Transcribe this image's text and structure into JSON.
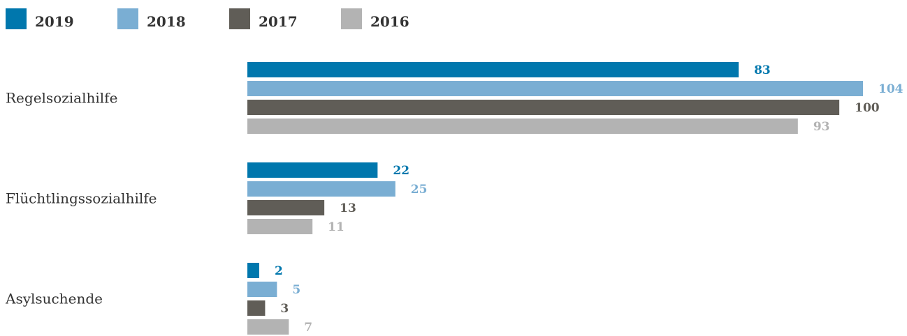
{
  "chart_data": {
    "type": "bar",
    "orientation": "horizontal",
    "categories": [
      "Regelsozialhilfe",
      "Flüchtlingssozialhilfe",
      "Asylsuchende"
    ],
    "series": [
      {
        "name": "2019",
        "color": "#0077ad",
        "values": [
          83,
          22,
          2
        ]
      },
      {
        "name": "2018",
        "color": "#7aaed3",
        "values": [
          104,
          25,
          5
        ]
      },
      {
        "name": "2017",
        "color": "#605d57",
        "values": [
          100,
          13,
          3
        ]
      },
      {
        "name": "2016",
        "color": "#b3b3b3",
        "values": [
          93,
          11,
          7
        ]
      }
    ],
    "legend_position": "top-left",
    "xlim": [
      0,
      104
    ],
    "grid": false
  }
}
